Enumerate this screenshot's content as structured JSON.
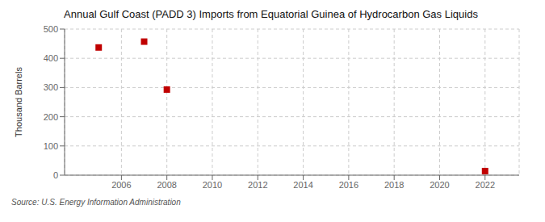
{
  "chart_data": {
    "type": "scatter",
    "title": "Annual Gulf Coast (PADD 3) Imports from Equatorial Guinea of Hydrocarbon Gas Liquids",
    "ylabel": "Thousand Barrels",
    "annotations": [
      "Source: U.S. Energy Information Administration"
    ],
    "x": [
      2005,
      2007,
      2008,
      2022
    ],
    "values": [
      437,
      457,
      293,
      14
    ],
    "color": "#c00000",
    "marker": "square",
    "xlim": [
      2003.5,
      2023.5
    ],
    "ylim": [
      0,
      500
    ],
    "xticks": [
      2006,
      2008,
      2010,
      2012,
      2014,
      2016,
      2018,
      2020,
      2022
    ],
    "yticks": [
      0,
      100,
      200,
      300,
      400,
      500
    ],
    "grid": true
  }
}
